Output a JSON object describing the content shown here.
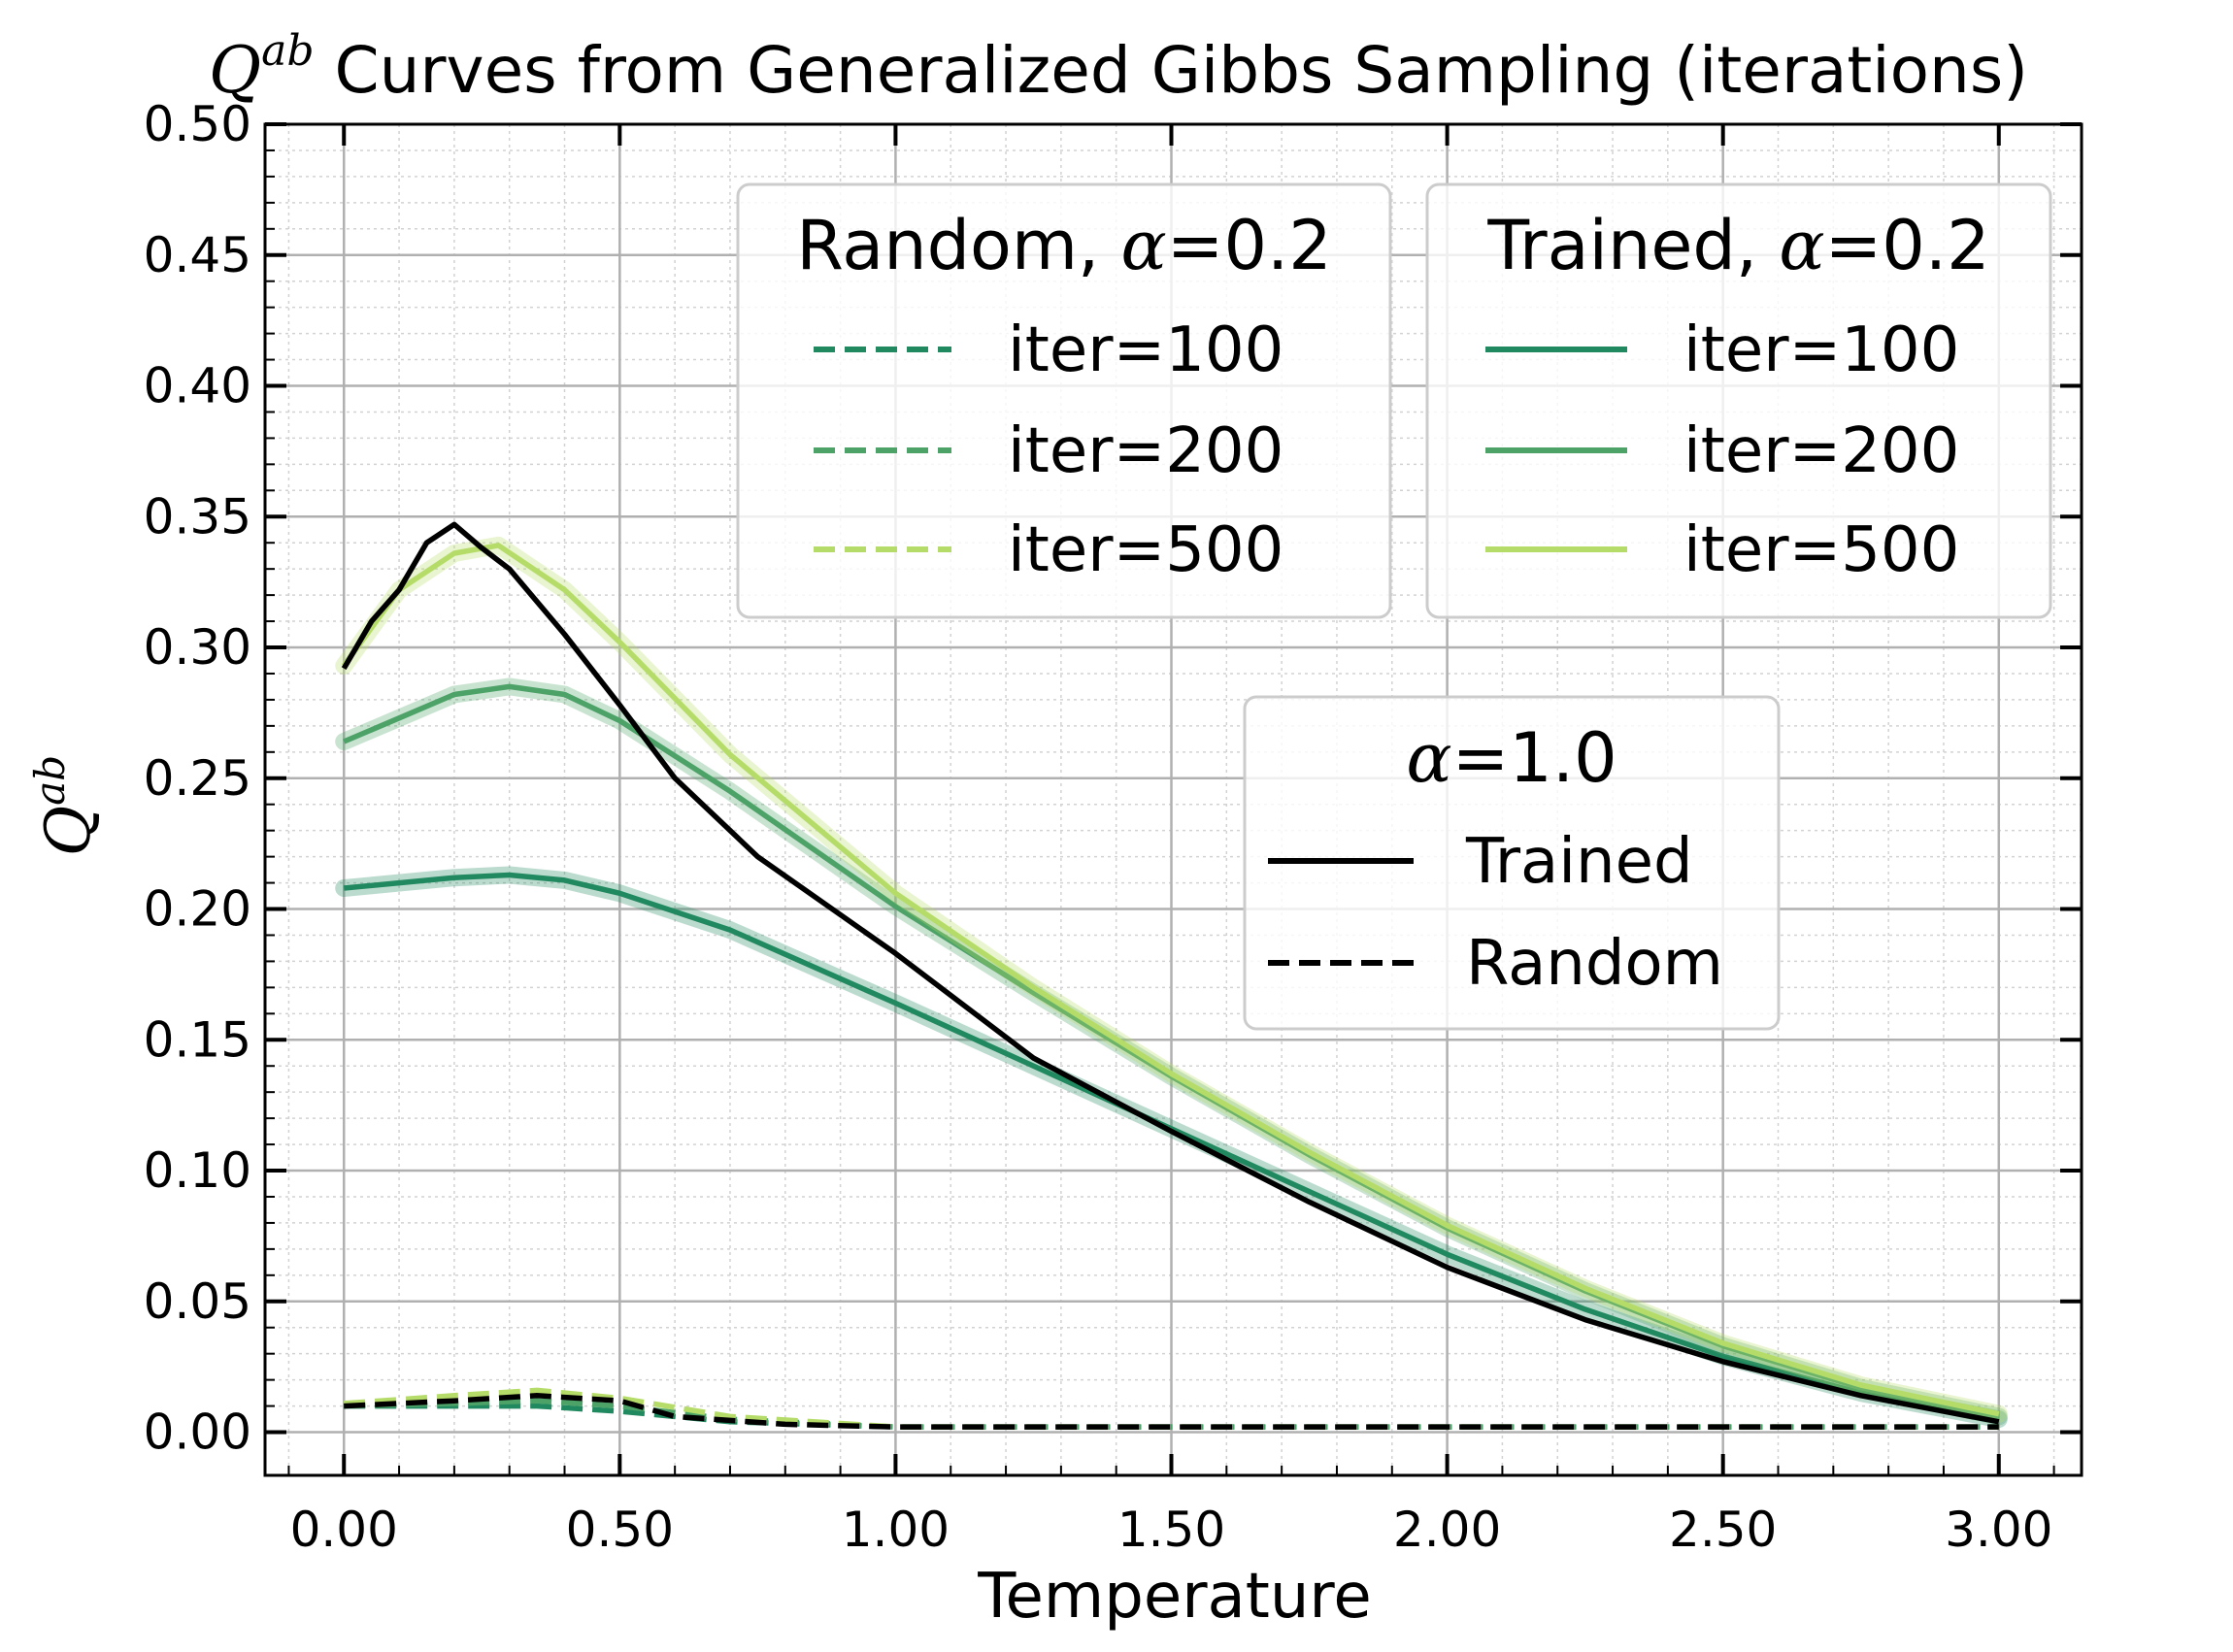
{
  "chart_data": {
    "type": "line",
    "title_symbol": "Q",
    "title_superscript": "ab",
    "title_rest": " Curves from Generalized Gibbs Sampling (iterations)",
    "xlabel": "Temperature",
    "ylabel_symbol": "Q",
    "ylabel_superscript": "ab",
    "xlim": [
      -0.143,
      3.15
    ],
    "ylim": [
      -0.0165,
      0.5
    ],
    "x_ticks": [
      "0.00",
      "0.50",
      "1.00",
      "1.50",
      "2.00",
      "2.50",
      "3.00"
    ],
    "y_ticks": [
      "0.00",
      "0.05",
      "0.10",
      "0.15",
      "0.20",
      "0.25",
      "0.30",
      "0.35",
      "0.40",
      "0.45",
      "0.50"
    ],
    "grid": true,
    "series": [
      {
        "name": "Random, α=0.2, iter=100",
        "color": "#21895f",
        "dash": "dashed",
        "x": [
          0.0,
          0.2,
          0.35,
          0.5,
          0.7,
          1.0,
          1.5,
          2.0,
          2.5,
          3.0
        ],
        "y": [
          0.01,
          0.01,
          0.01,
          0.008,
          0.004,
          0.002,
          0.002,
          0.002,
          0.002,
          0.002
        ]
      },
      {
        "name": "Random, α=0.2, iter=200",
        "color": "#4ca267",
        "dash": "dashed",
        "x": [
          0.0,
          0.2,
          0.35,
          0.5,
          0.7,
          1.0,
          1.5,
          2.0,
          2.5,
          3.0
        ],
        "y": [
          0.01,
          0.011,
          0.012,
          0.01,
          0.005,
          0.002,
          0.002,
          0.002,
          0.002,
          0.002
        ]
      },
      {
        "name": "Random, α=0.2, iter=500",
        "color": "#b5dc68",
        "dash": "dashed",
        "x": [
          0.0,
          0.2,
          0.35,
          0.5,
          0.7,
          1.0,
          1.5,
          2.0,
          2.5,
          3.0
        ],
        "y": [
          0.011,
          0.014,
          0.016,
          0.013,
          0.006,
          0.002,
          0.002,
          0.002,
          0.002,
          0.002
        ]
      },
      {
        "name": "Trained, α=0.2, iter=100",
        "color": "#21895f",
        "dash": "solid",
        "x": [
          0.0,
          0.1,
          0.2,
          0.3,
          0.4,
          0.5,
          0.7,
          1.0,
          1.25,
          1.5,
          1.75,
          2.0,
          2.25,
          2.5,
          2.75,
          3.0
        ],
        "y": [
          0.208,
          0.21,
          0.212,
          0.213,
          0.211,
          0.206,
          0.192,
          0.164,
          0.14,
          0.116,
          0.092,
          0.068,
          0.047,
          0.029,
          0.015,
          0.005
        ]
      },
      {
        "name": "Trained, α=0.2, iter=200",
        "color": "#4ca267",
        "dash": "solid",
        "x": [
          0.0,
          0.1,
          0.2,
          0.3,
          0.4,
          0.5,
          0.7,
          1.0,
          1.25,
          1.5,
          1.75,
          2.0,
          2.25,
          2.5,
          2.75,
          3.0
        ],
        "y": [
          0.264,
          0.273,
          0.282,
          0.285,
          0.282,
          0.272,
          0.245,
          0.201,
          0.168,
          0.136,
          0.106,
          0.078,
          0.054,
          0.033,
          0.017,
          0.006
        ]
      },
      {
        "name": "Trained, α=0.2, iter=500",
        "color": "#b5dc68",
        "dash": "solid",
        "x": [
          0.0,
          0.1,
          0.2,
          0.28,
          0.4,
          0.5,
          0.7,
          1.0,
          1.25,
          1.5,
          1.75,
          2.0,
          2.25,
          2.5,
          2.75,
          3.0
        ],
        "y": [
          0.293,
          0.322,
          0.336,
          0.339,
          0.322,
          0.302,
          0.259,
          0.206,
          0.17,
          0.137,
          0.107,
          0.079,
          0.055,
          0.034,
          0.018,
          0.007
        ]
      },
      {
        "name": "α=1.0, Trained",
        "color": "#000000",
        "dash": "solid",
        "x": [
          0.0,
          0.05,
          0.1,
          0.15,
          0.2,
          0.25,
          0.3,
          0.4,
          0.5,
          0.6,
          0.75,
          1.0,
          1.25,
          1.5,
          1.75,
          2.0,
          2.25,
          2.5,
          2.75,
          3.0
        ],
        "y": [
          0.292,
          0.31,
          0.322,
          0.34,
          0.347,
          0.338,
          0.33,
          0.305,
          0.278,
          0.25,
          0.22,
          0.183,
          0.143,
          0.115,
          0.088,
          0.063,
          0.043,
          0.027,
          0.014,
          0.004
        ]
      },
      {
        "name": "α=1.0, Random",
        "color": "#000000",
        "dash": "dashed",
        "x": [
          0.0,
          0.2,
          0.35,
          0.5,
          0.6,
          0.8,
          1.0,
          1.5,
          2.0,
          2.5,
          3.0
        ],
        "y": [
          0.01,
          0.012,
          0.014,
          0.012,
          0.006,
          0.003,
          0.002,
          0.002,
          0.002,
          0.002,
          0.002
        ]
      }
    ],
    "legends": [
      {
        "title_text": "Random, ",
        "title_symbol": "α",
        "title_value": "=0.2",
        "position": "top-center",
        "entries": [
          {
            "label": "iter=100",
            "color": "#21895f",
            "dash": "dashed"
          },
          {
            "label": "iter=200",
            "color": "#4ca267",
            "dash": "dashed"
          },
          {
            "label": "iter=500",
            "color": "#b5dc68",
            "dash": "dashed"
          }
        ]
      },
      {
        "title_text": "Trained, ",
        "title_symbol": "α",
        "title_value": "=0.2",
        "position": "top-right",
        "entries": [
          {
            "label": "iter=100",
            "color": "#21895f",
            "dash": "solid"
          },
          {
            "label": "iter=200",
            "color": "#4ca267",
            "dash": "solid"
          },
          {
            "label": "iter=500",
            "color": "#b5dc68",
            "dash": "solid"
          }
        ]
      },
      {
        "title_text": "",
        "title_symbol": "α",
        "title_value": "=1.0",
        "position": "center-right",
        "entries": [
          {
            "label": "Trained",
            "color": "#000000",
            "dash": "solid"
          },
          {
            "label": "Random",
            "color": "#000000",
            "dash": "dashed"
          }
        ]
      }
    ]
  }
}
